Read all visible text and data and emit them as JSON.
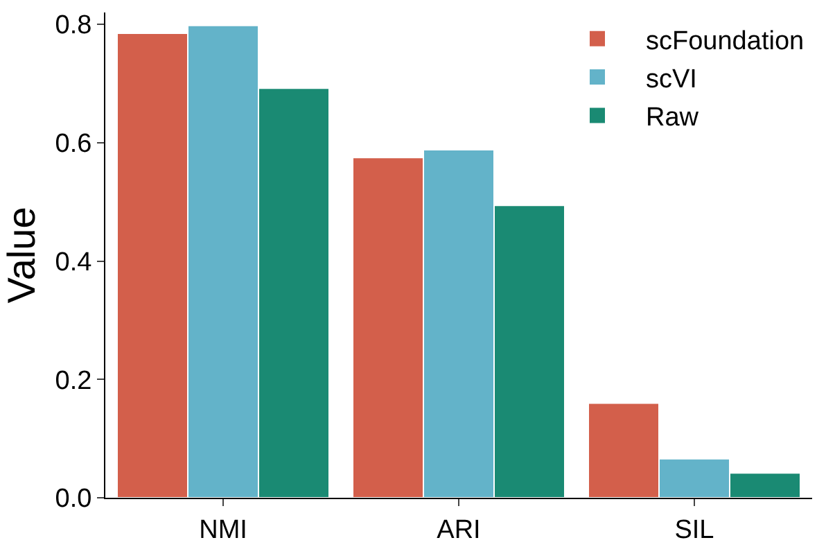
{
  "chart_data": {
    "type": "bar",
    "ylabel": "Value",
    "categories": [
      "NMI",
      "ARI",
      "SIL"
    ],
    "series": [
      {
        "name": "scFoundation",
        "color": "#d35f4b",
        "values": [
          0.785,
          0.575,
          0.16
        ]
      },
      {
        "name": "scVI",
        "color": "#63b3c9",
        "values": [
          0.798,
          0.588,
          0.066
        ]
      },
      {
        "name": "Raw",
        "color": "#1a8a73",
        "values": [
          0.692,
          0.494,
          0.042
        ]
      }
    ],
    "ylim": [
      0,
      0.82
    ],
    "yticks": [
      {
        "value": 0,
        "label": "0.0"
      },
      0.2,
      0.4,
      0.6,
      0.8
    ],
    "grid": false,
    "legend": "top right"
  }
}
